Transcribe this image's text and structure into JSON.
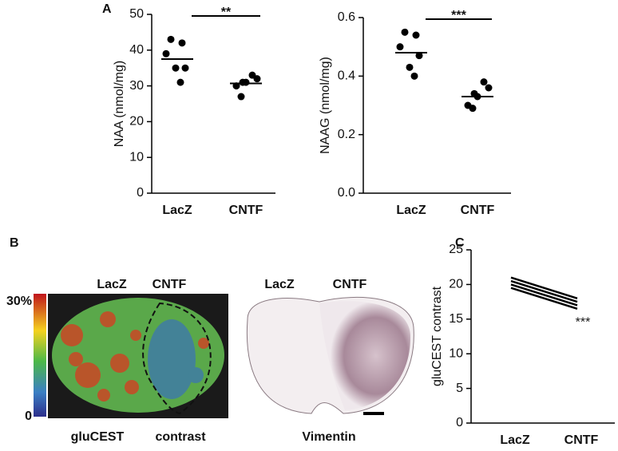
{
  "chart_data": [
    {
      "type": "dot",
      "panel": "A",
      "ylabel": "NAA (nmol/mg)",
      "categories": [
        "LacZ",
        "CNTF"
      ],
      "values": [
        [
          43,
          42,
          39,
          35,
          35,
          31
        ],
        [
          33,
          32,
          31,
          31,
          30,
          27
        ]
      ],
      "means": [
        37.5,
        30.7
      ],
      "significance": "**",
      "color": "#000000",
      "ylim": [
        0,
        50
      ],
      "yticks": [
        0,
        10,
        20,
        30,
        40,
        50
      ]
    },
    {
      "type": "dot",
      "ylabel": "NAAG (nmol/mg)",
      "categories": [
        "LacZ",
        "CNTF"
      ],
      "values": [
        [
          0.55,
          0.54,
          0.5,
          0.47,
          0.43,
          0.4
        ],
        [
          0.38,
          0.36,
          0.34,
          0.33,
          0.3,
          0.29
        ]
      ],
      "means": [
        0.48,
        0.33
      ],
      "significance": "***",
      "color": "#000000",
      "ylim": [
        0,
        0.6
      ],
      "yticks": [
        {
          "value": 0,
          "label": "0.0"
        },
        0.2,
        0.4,
        0.6
      ]
    },
    {
      "type": "line",
      "panel": "C",
      "ylabel": "gluCEST contrast",
      "categories": [
        "LacZ",
        "CNTF"
      ],
      "series": [
        {
          "color": "#000000",
          "values": [
            21,
            18
          ]
        },
        {
          "color": "#000000",
          "values": [
            20.5,
            17.5
          ]
        },
        {
          "color": "#000000",
          "values": [
            20,
            17
          ]
        },
        {
          "color": "#000000",
          "values": [
            19.5,
            16.5
          ]
        }
      ],
      "significance": "***",
      "ylim": [
        0,
        25
      ],
      "yticks": [
        0,
        5,
        10,
        15,
        20,
        25
      ]
    }
  ],
  "figure": {
    "panel_b": {
      "label": "B",
      "heatmap_labels": [
        "LacZ",
        "CNTF"
      ],
      "colorbar_labels": [
        "30%",
        "0"
      ],
      "heatmap_caption": [
        "gluCEST",
        "contrast"
      ],
      "stain_labels": [
        "LacZ",
        "CNTF"
      ],
      "stain_caption": "Vimentin"
    }
  }
}
